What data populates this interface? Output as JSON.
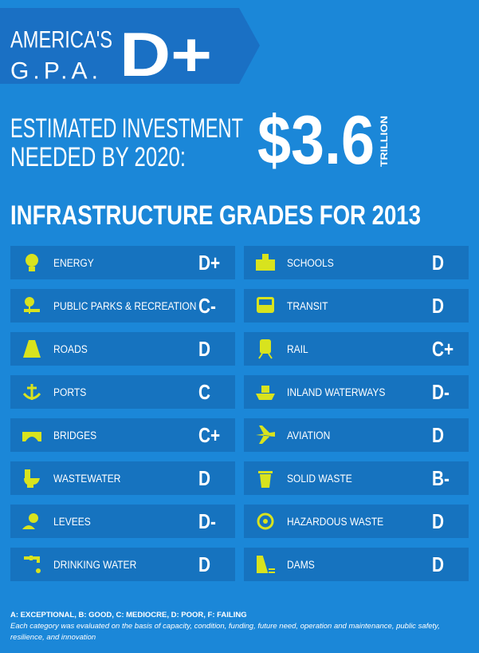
{
  "header": {
    "title_lines": [
      "AMERICA'S",
      "G.P.A."
    ],
    "grade": "D+"
  },
  "investment": {
    "label_lines": [
      "ESTIMATED INVESTMENT",
      "NEEDED BY 2020:"
    ],
    "amount": "$3.6",
    "unit": "TRILLION"
  },
  "section_title": "INFRASTRUCTURE GRADES FOR 2013",
  "grades": {
    "left": [
      {
        "label": "ENERGY",
        "grade": "D+"
      },
      {
        "label": "PUBLIC PARKS & RECREATION",
        "grade": "C-"
      },
      {
        "label": "ROADS",
        "grade": "D"
      },
      {
        "label": "PORTS",
        "grade": "C"
      },
      {
        "label": "BRIDGES",
        "grade": "C+"
      },
      {
        "label": "WASTEWATER",
        "grade": "D"
      },
      {
        "label": "LEVEES",
        "grade": "D-"
      },
      {
        "label": "DRINKING WATER",
        "grade": "D"
      }
    ],
    "right": [
      {
        "label": "SCHOOLS",
        "grade": "D"
      },
      {
        "label": "TRANSIT",
        "grade": "D"
      },
      {
        "label": "RAIL",
        "grade": "C+"
      },
      {
        "label": "INLAND WATERWAYS",
        "grade": "D-"
      },
      {
        "label": "AVIATION",
        "grade": "D"
      },
      {
        "label": "SOLID WASTE",
        "grade": "B-"
      },
      {
        "label": "HAZARDOUS WASTE",
        "grade": "D"
      },
      {
        "label": "DAMS",
        "grade": "D"
      }
    ]
  },
  "footer": {
    "legend": "A: EXCEPTIONAL, B: GOOD, C: MEDIOCRE, D: POOR, F: FAILING",
    "note": "Each category was evaluated on the basis of capacity, condition, funding, future need, operation and maintenance, public safety, resilience, and innovation"
  }
}
